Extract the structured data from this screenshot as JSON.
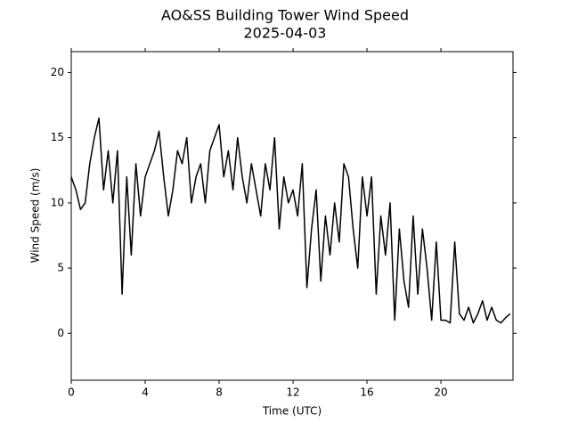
{
  "chart_data": {
    "type": "line",
    "title": "AO&SS Building Tower Wind Speed",
    "subtitle": "2025-04-03",
    "x_label": "Time (UTC)",
    "y_label": "Wind Speed (m/s)",
    "xlim": [
      0,
      23.9
    ],
    "xticks": [
      0,
      4,
      8,
      12,
      16,
      20
    ],
    "ylim": [
      -3.6,
      21.6
    ],
    "yticks": [
      0,
      5,
      10,
      15,
      20
    ],
    "x": [
      0,
      0.25,
      0.5,
      0.75,
      1,
      1.25,
      1.5,
      1.75,
      2,
      2.25,
      2.5,
      2.75,
      3,
      3.25,
      3.5,
      3.75,
      4,
      4.25,
      4.5,
      4.75,
      5,
      5.25,
      5.5,
      5.75,
      6,
      6.25,
      6.5,
      6.75,
      7,
      7.25,
      7.5,
      7.75,
      8,
      8.25,
      8.5,
      8.75,
      9,
      9.25,
      9.5,
      9.75,
      10,
      10.25,
      10.5,
      10.75,
      11,
      11.25,
      11.5,
      11.75,
      12,
      12.25,
      12.5,
      12.75,
      13,
      13.25,
      13.5,
      13.75,
      14,
      14.25,
      14.5,
      14.75,
      15,
      15.25,
      15.5,
      15.75,
      16,
      16.25,
      16.5,
      16.75,
      17,
      17.25,
      17.5,
      17.75,
      18,
      18.25,
      18.5,
      18.75,
      19,
      19.25,
      19.5,
      19.75,
      20,
      20.25,
      20.5,
      20.75,
      21,
      21.25,
      21.5,
      21.75,
      22,
      22.25,
      22.5,
      22.75,
      23,
      23.25,
      23.5,
      23.75
    ],
    "series": [
      {
        "name": "Wind Speed",
        "color": "#000000",
        "values": [
          12,
          11,
          9.5,
          10,
          13,
          15,
          16.5,
          11,
          14,
          10,
          14,
          3,
          12,
          6,
          13,
          9,
          12,
          13,
          14,
          15.5,
          12,
          9,
          11,
          14,
          13,
          15,
          10,
          12,
          13,
          10,
          14,
          15,
          16,
          12,
          14,
          11,
          15,
          12,
          10,
          13,
          11,
          9,
          13,
          11,
          15,
          8,
          12,
          10,
          11,
          9,
          13,
          3.5,
          8,
          11,
          4,
          9,
          6,
          10,
          7,
          13,
          12,
          8,
          5,
          12,
          9,
          12,
          3,
          9,
          6,
          10,
          1,
          8,
          4,
          2,
          9,
          3,
          8,
          5,
          1,
          7,
          1,
          1,
          0.8,
          7,
          1.5,
          1,
          2,
          0.8,
          1.5,
          2.5,
          1,
          2,
          1,
          0.8,
          1.2,
          1.5
        ]
      }
    ]
  }
}
